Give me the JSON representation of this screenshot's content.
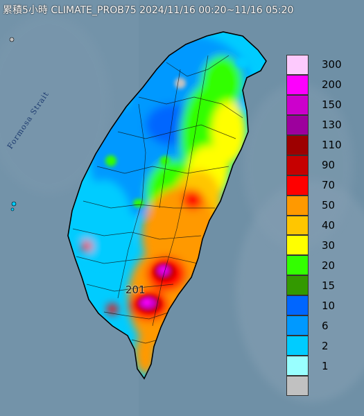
{
  "header": {
    "title": "累積5小時 CLIMATE_PROB75 2024/11/16 00:20~11/16 05:20"
  },
  "map": {
    "sea_label": "Formosa Strait",
    "max_marker_label": "201",
    "sea_color": "#6f90a6"
  },
  "legend": {
    "items": [
      {
        "label": "300",
        "color": "#fdcafd"
      },
      {
        "label": "200",
        "color": "#fd00fd"
      },
      {
        "label": "150",
        "color": "#cc00cc"
      },
      {
        "label": "130",
        "color": "#9d009d"
      },
      {
        "label": "110",
        "color": "#9d0000"
      },
      {
        "label": "90",
        "color": "#c60000"
      },
      {
        "label": "70",
        "color": "#ff0000"
      },
      {
        "label": "50",
        "color": "#ff9900"
      },
      {
        "label": "40",
        "color": "#ffc600"
      },
      {
        "label": "30",
        "color": "#ffff00"
      },
      {
        "label": "20",
        "color": "#33ff00"
      },
      {
        "label": "15",
        "color": "#339900"
      },
      {
        "label": "10",
        "color": "#0066ff"
      },
      {
        "label": "6",
        "color": "#0099ff"
      },
      {
        "label": "2",
        "color": "#00ccff"
      },
      {
        "label": "1",
        "color": "#99ffff"
      },
      {
        "label": "",
        "color": "#c1c1c1"
      }
    ]
  }
}
